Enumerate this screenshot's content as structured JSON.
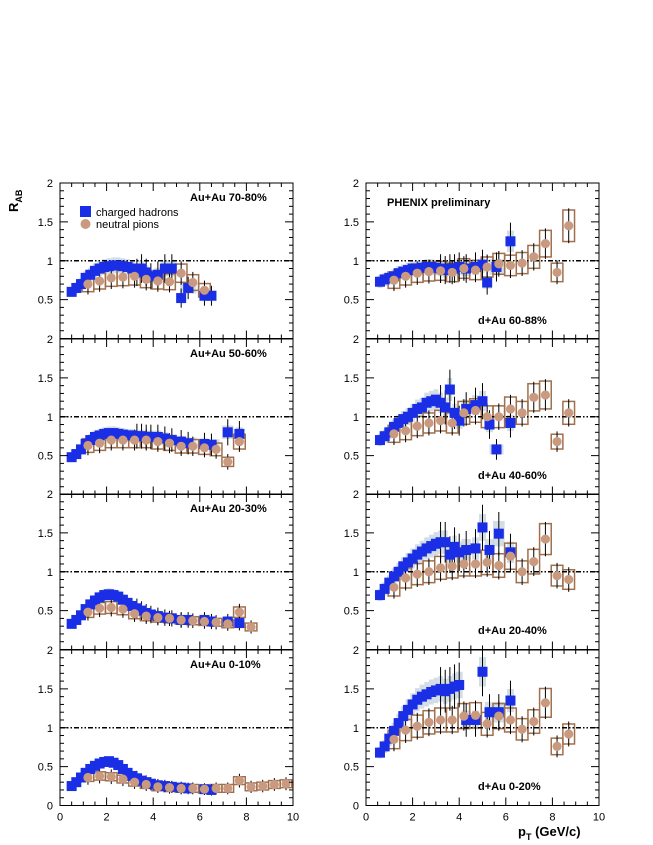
{
  "figure": {
    "ylabel_main": "R",
    "ylabel_sub": "AB",
    "xlabel_main": "p",
    "xlabel_sub": "T",
    "xlabel_unit": " (GeV/c)",
    "watermark": "PHENIX preliminary",
    "legend": [
      {
        "label": "charged hadrons",
        "marker": "square",
        "color": "#1a2ee6"
      },
      {
        "label": "neutral pions",
        "marker": "circle",
        "color": "#c99a80"
      }
    ],
    "colors": {
      "charged": "#1a2ee6",
      "neutral": "#c99a80",
      "box": "#a0704e",
      "band": "#c8d4e0",
      "reference": "#000000"
    }
  },
  "chart_data": [
    {
      "type": "scatter",
      "label": "Au+Au 70-80%",
      "xlim": [
        0,
        10
      ],
      "ylim": [
        0,
        2
      ],
      "reference_line": 1,
      "x_ticks": [
        0,
        2,
        4,
        6,
        8,
        10
      ],
      "y_ticks": [
        0.5,
        1,
        1.5,
        2
      ],
      "series": [
        {
          "name": "charged hadrons",
          "x": [
            0.5,
            0.7,
            0.9,
            1.1,
            1.3,
            1.5,
            1.7,
            1.9,
            2.1,
            2.3,
            2.5,
            2.7,
            2.9,
            3.1,
            3.3,
            3.5,
            3.7,
            3.9,
            4.2,
            4.5,
            4.8,
            5.2,
            5.5,
            6.2,
            6.5
          ],
          "y": [
            0.6,
            0.65,
            0.7,
            0.78,
            0.82,
            0.87,
            0.9,
            0.92,
            0.93,
            0.94,
            0.94,
            0.93,
            0.92,
            0.9,
            0.85,
            0.9,
            0.85,
            0.8,
            0.82,
            0.9,
            0.9,
            0.52,
            0.65,
            0.55,
            0.55
          ]
        },
        {
          "name": "neutral pions",
          "x": [
            1.2,
            1.7,
            2.2,
            2.7,
            3.2,
            3.7,
            4.2,
            4.7,
            5.2,
            5.7,
            6.2
          ],
          "y": [
            0.7,
            0.74,
            0.78,
            0.79,
            0.8,
            0.76,
            0.74,
            0.73,
            0.84,
            0.72,
            0.62
          ]
        }
      ]
    },
    {
      "type": "scatter",
      "label": "PHENIX preliminary / d+Au 60-88%",
      "xlim": [
        0,
        10
      ],
      "ylim": [
        0,
        2
      ],
      "reference_line": 1,
      "x_ticks": [
        0,
        2,
        4,
        6,
        8,
        10
      ],
      "y_ticks": [
        0.5,
        1,
        1.5,
        2
      ],
      "series": [
        {
          "name": "charged hadrons",
          "x": [
            0.6,
            0.8,
            1.0,
            1.2,
            1.4,
            1.6,
            1.8,
            2.0,
            2.2,
            2.4,
            2.6,
            2.8,
            3.0,
            3.2,
            3.4,
            3.6,
            3.8,
            4.0,
            4.3,
            4.7,
            5.0,
            5.2,
            5.6,
            6.2
          ],
          "y": [
            0.73,
            0.76,
            0.78,
            0.8,
            0.84,
            0.86,
            0.88,
            0.9,
            0.9,
            0.91,
            0.92,
            0.92,
            0.91,
            0.9,
            0.88,
            0.9,
            0.9,
            0.92,
            0.9,
            0.92,
            0.95,
            0.72,
            0.92,
            1.25
          ]
        },
        {
          "name": "neutral pions",
          "x": [
            1.2,
            1.7,
            2.2,
            2.7,
            3.2,
            3.7,
            4.2,
            4.7,
            5.2,
            5.7,
            6.2,
            6.7,
            7.2,
            7.7,
            8.2,
            8.7
          ],
          "y": [
            0.75,
            0.8,
            0.84,
            0.86,
            0.87,
            0.85,
            0.9,
            0.88,
            0.92,
            0.96,
            0.94,
            0.97,
            1.05,
            1.22,
            0.85,
            1.45
          ]
        }
      ]
    },
    {
      "type": "scatter",
      "label": "Au+Au 50-60%",
      "xlim": [
        0,
        10
      ],
      "ylim": [
        0,
        2
      ],
      "reference_line": 1,
      "x_ticks": [
        0,
        2,
        4,
        6,
        8,
        10
      ],
      "y_ticks": [
        0.5,
        1,
        1.5,
        2
      ],
      "series": [
        {
          "name": "charged hadrons",
          "x": [
            0.5,
            0.7,
            0.9,
            1.1,
            1.3,
            1.5,
            1.7,
            1.9,
            2.1,
            2.3,
            2.5,
            2.7,
            2.9,
            3.1,
            3.3,
            3.5,
            3.7,
            3.9,
            4.2,
            4.5,
            4.8,
            5.2,
            5.5,
            6.2,
            6.5,
            7.2,
            7.7
          ],
          "y": [
            0.48,
            0.52,
            0.58,
            0.65,
            0.7,
            0.74,
            0.76,
            0.78,
            0.79,
            0.79,
            0.78,
            0.77,
            0.76,
            0.76,
            0.75,
            0.75,
            0.74,
            0.74,
            0.74,
            0.72,
            0.7,
            0.68,
            0.66,
            0.65,
            0.64,
            0.8,
            0.78
          ]
        },
        {
          "name": "neutral pions",
          "x": [
            1.2,
            1.7,
            2.2,
            2.7,
            3.2,
            3.7,
            4.2,
            4.7,
            5.2,
            5.7,
            6.2,
            6.7,
            7.2,
            7.7
          ],
          "y": [
            0.63,
            0.66,
            0.7,
            0.7,
            0.7,
            0.7,
            0.68,
            0.66,
            0.62,
            0.62,
            0.6,
            0.58,
            0.42,
            0.68
          ]
        }
      ]
    },
    {
      "type": "scatter",
      "label": "d+Au 40-60%",
      "xlim": [
        0,
        10
      ],
      "ylim": [
        0,
        2
      ],
      "reference_line": 1,
      "x_ticks": [
        0,
        2,
        4,
        6,
        8,
        10
      ],
      "y_ticks": [
        0.5,
        1,
        1.5,
        2
      ],
      "series": [
        {
          "name": "charged hadrons",
          "x": [
            0.6,
            0.8,
            1.0,
            1.2,
            1.4,
            1.6,
            1.8,
            2.0,
            2.2,
            2.4,
            2.6,
            2.8,
            3.0,
            3.2,
            3.4,
            3.6,
            3.8,
            4.0,
            4.3,
            4.7,
            5.0,
            5.3,
            5.6,
            6.2
          ],
          "y": [
            0.7,
            0.75,
            0.8,
            0.87,
            0.92,
            0.97,
            1.0,
            1.05,
            1.1,
            1.12,
            1.18,
            1.2,
            1.22,
            1.18,
            1.12,
            1.35,
            1.05,
            0.95,
            1.1,
            1.15,
            1.2,
            0.9,
            0.58,
            0.92
          ]
        },
        {
          "name": "neutral pions",
          "x": [
            1.2,
            1.7,
            2.2,
            2.7,
            3.2,
            3.7,
            4.2,
            4.7,
            5.2,
            5.7,
            6.2,
            6.7,
            7.2,
            7.7,
            8.2,
            8.7
          ],
          "y": [
            0.78,
            0.82,
            0.88,
            0.92,
            0.95,
            0.92,
            1.05,
            1.08,
            1.0,
            1.0,
            1.1,
            1.05,
            1.25,
            1.28,
            0.68,
            1.05
          ]
        }
      ]
    },
    {
      "type": "scatter",
      "label": "Au+Au 20-30%",
      "xlim": [
        0,
        10
      ],
      "ylim": [
        0,
        2
      ],
      "reference_line": 1,
      "x_ticks": [
        0,
        2,
        4,
        6,
        8,
        10
      ],
      "y_ticks": [
        0.5,
        1,
        1.5,
        2
      ],
      "series": [
        {
          "name": "charged hadrons",
          "x": [
            0.5,
            0.7,
            0.9,
            1.1,
            1.3,
            1.5,
            1.7,
            1.9,
            2.1,
            2.3,
            2.5,
            2.7,
            2.9,
            3.1,
            3.3,
            3.5,
            3.7,
            3.9,
            4.2,
            4.5,
            4.8,
            5.2,
            5.5,
            6.2,
            6.5,
            7.2,
            7.7
          ],
          "y": [
            0.33,
            0.38,
            0.44,
            0.52,
            0.58,
            0.63,
            0.67,
            0.7,
            0.71,
            0.7,
            0.68,
            0.64,
            0.6,
            0.56,
            0.53,
            0.5,
            0.47,
            0.45,
            0.43,
            0.41,
            0.4,
            0.38,
            0.38,
            0.38,
            0.36,
            0.36,
            0.34
          ]
        },
        {
          "name": "neutral pions",
          "x": [
            1.2,
            1.7,
            2.2,
            2.7,
            3.2,
            3.7,
            4.2,
            4.7,
            5.2,
            5.7,
            6.2,
            6.7,
            7.2,
            7.7,
            8.2
          ],
          "y": [
            0.48,
            0.53,
            0.54,
            0.52,
            0.46,
            0.43,
            0.41,
            0.4,
            0.38,
            0.37,
            0.36,
            0.35,
            0.33,
            0.48,
            0.29
          ]
        }
      ]
    },
    {
      "type": "scatter",
      "label": "d+Au 20-40%",
      "xlim": [
        0,
        10
      ],
      "ylim": [
        0,
        2
      ],
      "reference_line": 1,
      "x_ticks": [
        0,
        2,
        4,
        6,
        8,
        10
      ],
      "y_ticks": [
        0.5,
        1,
        1.5,
        2
      ],
      "series": [
        {
          "name": "charged hadrons",
          "x": [
            0.6,
            0.8,
            1.0,
            1.2,
            1.4,
            1.6,
            1.8,
            2.0,
            2.2,
            2.4,
            2.6,
            2.8,
            3.0,
            3.2,
            3.4,
            3.6,
            3.8,
            4.0,
            4.3,
            4.7,
            5.0,
            5.3,
            5.7,
            6.2
          ],
          "y": [
            0.7,
            0.78,
            0.86,
            0.94,
            1.0,
            1.07,
            1.12,
            1.17,
            1.22,
            1.26,
            1.3,
            1.33,
            1.36,
            1.38,
            1.38,
            1.22,
            1.32,
            1.25,
            1.28,
            1.3,
            1.57,
            1.28,
            1.49,
            1.25
          ]
        },
        {
          "name": "neutral pions",
          "x": [
            1.2,
            1.7,
            2.2,
            2.7,
            3.2,
            3.7,
            4.2,
            4.7,
            5.2,
            5.7,
            6.2,
            6.7,
            7.2,
            7.7,
            8.2,
            8.7
          ],
          "y": [
            0.8,
            0.92,
            0.97,
            1.0,
            1.05,
            1.07,
            1.1,
            1.1,
            1.12,
            1.08,
            1.2,
            1.0,
            1.13,
            1.42,
            0.95,
            0.9
          ]
        }
      ]
    },
    {
      "type": "scatter",
      "label": "Au+Au 0-10%",
      "xlim": [
        0,
        10
      ],
      "ylim": [
        0,
        2
      ],
      "reference_line": 1,
      "x_ticks": [
        0,
        2,
        4,
        6,
        8,
        10
      ],
      "y_ticks": [
        0.5,
        1,
        1.5,
        2
      ],
      "series": [
        {
          "name": "charged hadrons",
          "x": [
            0.5,
            0.7,
            0.9,
            1.1,
            1.3,
            1.5,
            1.7,
            1.9,
            2.1,
            2.3,
            2.5,
            2.7,
            2.9,
            3.1,
            3.3,
            3.5,
            3.7,
            3.9,
            4.2,
            4.5,
            4.8,
            5.2,
            5.5,
            6.2,
            6.5
          ],
          "y": [
            0.25,
            0.3,
            0.36,
            0.42,
            0.47,
            0.51,
            0.54,
            0.56,
            0.57,
            0.55,
            0.52,
            0.47,
            0.42,
            0.38,
            0.35,
            0.32,
            0.3,
            0.28,
            0.26,
            0.25,
            0.24,
            0.23,
            0.22,
            0.21,
            0.2
          ]
        },
        {
          "name": "neutral pions",
          "x": [
            1.2,
            1.7,
            2.2,
            2.7,
            3.2,
            3.7,
            4.2,
            4.7,
            5.2,
            5.7,
            6.2,
            6.7,
            7.2,
            7.7,
            8.2,
            8.7,
            9.2,
            9.7
          ],
          "y": [
            0.36,
            0.38,
            0.37,
            0.34,
            0.3,
            0.27,
            0.24,
            0.23,
            0.22,
            0.22,
            0.21,
            0.22,
            0.22,
            0.32,
            0.24,
            0.25,
            0.27,
            0.28
          ]
        }
      ]
    },
    {
      "type": "scatter",
      "label": "d+Au 0-20%",
      "xlim": [
        0,
        10
      ],
      "ylim": [
        0,
        2
      ],
      "reference_line": 1,
      "x_ticks": [
        0,
        2,
        4,
        6,
        8,
        10
      ],
      "y_ticks": [
        0.5,
        1,
        1.5,
        2
      ],
      "series": [
        {
          "name": "charged hadrons",
          "x": [
            0.6,
            0.8,
            1.0,
            1.2,
            1.4,
            1.6,
            1.8,
            2.0,
            2.2,
            2.4,
            2.6,
            2.8,
            3.0,
            3.2,
            3.4,
            3.6,
            3.8,
            4.0,
            4.3,
            4.7,
            5.0,
            5.3,
            5.7,
            6.2
          ],
          "y": [
            0.68,
            0.76,
            0.86,
            0.96,
            1.06,
            1.15,
            1.23,
            1.3,
            1.36,
            1.4,
            1.43,
            1.46,
            1.48,
            1.5,
            1.47,
            1.5,
            1.53,
            1.55,
            1.1,
            1.1,
            1.72,
            1.2,
            1.2,
            1.35
          ]
        },
        {
          "name": "neutral pions",
          "x": [
            1.2,
            1.7,
            2.2,
            2.7,
            3.2,
            3.7,
            4.2,
            4.7,
            5.2,
            5.7,
            6.2,
            6.7,
            7.2,
            7.7,
            8.2,
            8.7
          ],
          "y": [
            0.85,
            0.97,
            1.02,
            1.07,
            1.1,
            1.1,
            1.15,
            1.16,
            1.05,
            1.15,
            1.1,
            0.98,
            1.08,
            1.32,
            0.76,
            0.92
          ]
        }
      ]
    }
  ]
}
